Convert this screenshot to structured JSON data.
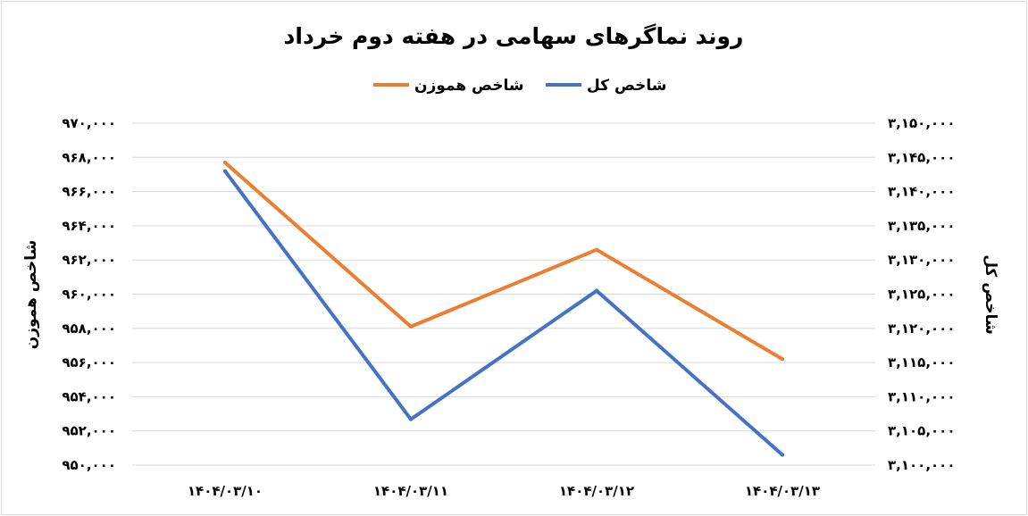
{
  "chart_data": {
    "type": "line",
    "title": "روند نماگرهای سهامی در هفته دوم خرداد",
    "categories": [
      "۱۴۰۴/۰۳/۱۰",
      "۱۴۰۴/۰۳/۱۱",
      "۱۴۰۴/۰۳/۱۲",
      "۱۴۰۴/۰۳/۱۳"
    ],
    "series": [
      {
        "name": "شاخص هموزن",
        "axis": "left",
        "color": "#ED7D31",
        "values": [
          967700,
          958100,
          962600,
          956200
        ]
      },
      {
        "name": "شاخص کل",
        "axis": "right",
        "color": "#4472C4",
        "values": [
          3143000,
          3106700,
          3125500,
          3101500
        ]
      }
    ],
    "left_axis": {
      "label": "شاخص هموزن",
      "ylim": [
        950000,
        970000
      ],
      "ticks": [
        "۹۵۰,۰۰۰",
        "۹۵۲,۰۰۰",
        "۹۵۴,۰۰۰",
        "۹۵۶,۰۰۰",
        "۹۵۸,۰۰۰",
        "۹۶۰,۰۰۰",
        "۹۶۲,۰۰۰",
        "۹۶۴,۰۰۰",
        "۹۶۶,۰۰۰",
        "۹۶۸,۰۰۰",
        "۹۷۰,۰۰۰"
      ]
    },
    "right_axis": {
      "label": "شاخص کل",
      "ylim": [
        3100000,
        3150000
      ],
      "ticks": [
        "۳,۱۰۰,۰۰۰",
        "۳,۱۰۵,۰۰۰",
        "۳,۱۱۰,۰۰۰",
        "۳,۱۱۵,۰۰۰",
        "۳,۱۲۰,۰۰۰",
        "۳,۱۲۵,۰۰۰",
        "۳,۱۳۰,۰۰۰",
        "۳,۱۳۵,۰۰۰",
        "۳,۱۴۰,۰۰۰",
        "۳,۱۴۵,۰۰۰",
        "۳,۱۵۰,۰۰۰"
      ]
    },
    "grid": true,
    "legend_position": "top"
  }
}
